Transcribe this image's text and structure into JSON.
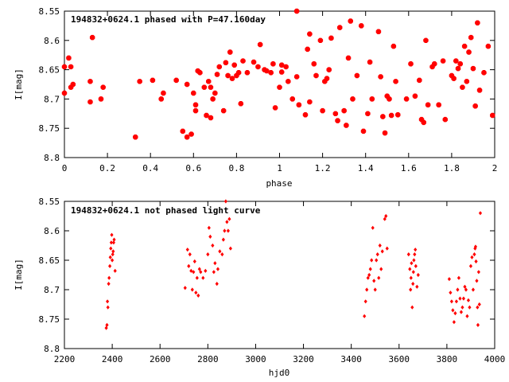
{
  "chart_data": [
    {
      "type": "scatter",
      "title": "194832+0624.1 phased with P=47.160day",
      "xlabel": "phase",
      "ylabel": "I[mag]",
      "xlim": [
        0,
        2
      ],
      "ylim": [
        8.8,
        8.55
      ],
      "y_inverted": true,
      "grid": false,
      "color": "#ff0000",
      "marker": "star",
      "xticks": [
        "0",
        "0.2",
        "0.4",
        "0.6",
        "0.8",
        "1",
        "1.2",
        "1.4",
        "1.6",
        "1.8",
        "2"
      ],
      "xtick_values": [
        0,
        0.2,
        0.4,
        0.6,
        0.8,
        1.0,
        1.2,
        1.4,
        1.6,
        1.8,
        2.0
      ],
      "yticks": [
        "8.55",
        "8.6",
        "8.65",
        "8.7",
        "8.75",
        "8.8"
      ],
      "ytick_values": [
        8.55,
        8.6,
        8.65,
        8.7,
        8.75,
        8.8
      ],
      "points": [
        [
          0.0,
          8.645
        ],
        [
          0.0,
          8.69
        ],
        [
          0.02,
          8.63
        ],
        [
          0.03,
          8.645
        ],
        [
          0.03,
          8.68
        ],
        [
          0.04,
          8.675
        ],
        [
          0.12,
          8.67
        ],
        [
          0.12,
          8.705
        ],
        [
          0.13,
          8.595
        ],
        [
          0.17,
          8.7
        ],
        [
          0.18,
          8.68
        ],
        [
          0.33,
          8.765
        ],
        [
          0.35,
          8.67
        ],
        [
          0.41,
          8.668
        ],
        [
          0.45,
          8.7
        ],
        [
          0.46,
          8.69
        ],
        [
          0.52,
          8.668
        ],
        [
          0.55,
          8.755
        ],
        [
          0.57,
          8.765
        ],
        [
          0.57,
          8.675
        ],
        [
          0.59,
          8.76
        ],
        [
          0.6,
          8.69
        ],
        [
          0.61,
          8.71
        ],
        [
          0.61,
          8.72
        ],
        [
          0.62,
          8.652
        ],
        [
          0.63,
          8.655
        ],
        [
          0.65,
          8.68
        ],
        [
          0.66,
          8.728
        ],
        [
          0.67,
          8.67
        ],
        [
          0.68,
          8.732
        ],
        [
          0.68,
          8.68
        ],
        [
          0.69,
          8.7
        ],
        [
          0.7,
          8.69
        ],
        [
          0.71,
          8.658
        ],
        [
          0.72,
          8.645
        ],
        [
          0.74,
          8.72
        ],
        [
          0.75,
          8.638
        ],
        [
          0.76,
          8.66
        ],
        [
          0.77,
          8.62
        ],
        [
          0.78,
          8.665
        ],
        [
          0.79,
          8.642
        ],
        [
          0.8,
          8.66
        ],
        [
          0.81,
          8.655
        ],
        [
          0.82,
          8.708
        ],
        [
          0.83,
          8.635
        ],
        [
          0.85,
          8.655
        ],
        [
          0.88,
          8.637
        ],
        [
          0.9,
          8.645
        ],
        [
          0.91,
          8.607
        ],
        [
          0.93,
          8.65
        ],
        [
          0.94,
          8.652
        ],
        [
          0.96,
          8.655
        ],
        [
          0.97,
          8.64
        ],
        [
          0.98,
          8.715
        ],
        [
          1.0,
          8.68
        ],
        [
          1.01,
          8.642
        ],
        [
          1.01,
          8.654
        ],
        [
          1.03,
          8.645
        ],
        [
          1.04,
          8.67
        ],
        [
          1.06,
          8.7
        ],
        [
          1.08,
          8.55
        ],
        [
          1.08,
          8.662
        ],
        [
          1.09,
          8.71
        ],
        [
          1.12,
          8.727
        ],
        [
          1.13,
          8.615
        ],
        [
          1.14,
          8.589
        ],
        [
          1.14,
          8.705
        ],
        [
          1.16,
          8.64
        ],
        [
          1.17,
          8.66
        ],
        [
          1.19,
          8.6
        ],
        [
          1.2,
          8.72
        ],
        [
          1.21,
          8.67
        ],
        [
          1.22,
          8.665
        ],
        [
          1.23,
          8.65
        ],
        [
          1.24,
          8.596
        ],
        [
          1.26,
          8.725
        ],
        [
          1.27,
          8.737
        ],
        [
          1.28,
          8.578
        ],
        [
          1.3,
          8.72
        ],
        [
          1.31,
          8.745
        ],
        [
          1.32,
          8.63
        ],
        [
          1.33,
          8.567
        ],
        [
          1.34,
          8.7
        ],
        [
          1.36,
          8.66
        ],
        [
          1.38,
          8.575
        ],
        [
          1.39,
          8.755
        ],
        [
          1.41,
          8.725
        ],
        [
          1.42,
          8.637
        ],
        [
          1.43,
          8.7
        ],
        [
          1.46,
          8.585
        ],
        [
          1.47,
          8.662
        ],
        [
          1.48,
          8.73
        ],
        [
          1.49,
          8.758
        ],
        [
          1.5,
          8.695
        ],
        [
          1.51,
          8.7
        ],
        [
          1.52,
          8.728
        ],
        [
          1.53,
          8.61
        ],
        [
          1.54,
          8.67
        ],
        [
          1.55,
          8.727
        ],
        [
          1.59,
          8.7
        ],
        [
          1.61,
          8.64
        ],
        [
          1.63,
          8.695
        ],
        [
          1.65,
          8.668
        ],
        [
          1.66,
          8.735
        ],
        [
          1.67,
          8.74
        ],
        [
          1.68,
          8.6
        ],
        [
          1.69,
          8.71
        ],
        [
          1.71,
          8.645
        ],
        [
          1.72,
          8.64
        ],
        [
          1.74,
          8.71
        ],
        [
          1.76,
          8.635
        ],
        [
          1.77,
          8.735
        ],
        [
          1.8,
          8.66
        ],
        [
          1.81,
          8.665
        ],
        [
          1.82,
          8.635
        ],
        [
          1.83,
          8.648
        ],
        [
          1.84,
          8.64
        ],
        [
          1.85,
          8.68
        ],
        [
          1.86,
          8.61
        ],
        [
          1.87,
          8.67
        ],
        [
          1.88,
          8.62
        ],
        [
          1.89,
          8.595
        ],
        [
          1.9,
          8.648
        ],
        [
          1.91,
          8.712
        ],
        [
          1.92,
          8.57
        ],
        [
          1.93,
          8.685
        ],
        [
          1.95,
          8.655
        ],
        [
          1.97,
          8.61
        ],
        [
          1.99,
          8.728
        ]
      ]
    },
    {
      "type": "scatter",
      "title": "194832+0624.1 not phased light curve",
      "xlabel": "hjd0",
      "ylabel": "I[mag]",
      "xlim": [
        2200,
        4000
      ],
      "ylim": [
        8.8,
        8.55
      ],
      "y_inverted": true,
      "grid": false,
      "color": "#ff0000",
      "marker": "diamond",
      "xticks": [
        "2200",
        "2400",
        "2600",
        "2800",
        "3000",
        "3200",
        "3400",
        "3600",
        "3800",
        "4000"
      ],
      "xtick_values": [
        2200,
        2400,
        2600,
        2800,
        3000,
        3200,
        3400,
        3600,
        3800,
        4000
      ],
      "yticks": [
        "8.55",
        "8.6",
        "8.65",
        "8.7",
        "8.75",
        "8.8"
      ],
      "ytick_values": [
        8.55,
        8.6,
        8.65,
        8.7,
        8.75,
        8.8
      ],
      "points": [
        [
          2375,
          8.765
        ],
        [
          2378,
          8.76
        ],
        [
          2380,
          8.72
        ],
        [
          2382,
          8.73
        ],
        [
          2385,
          8.69
        ],
        [
          2387,
          8.68
        ],
        [
          2390,
          8.66
        ],
        [
          2392,
          8.645
        ],
        [
          2394,
          8.63
        ],
        [
          2396,
          8.62
        ],
        [
          2398,
          8.607
        ],
        [
          2400,
          8.65
        ],
        [
          2402,
          8.64
        ],
        [
          2404,
          8.635
        ],
        [
          2406,
          8.62
        ],
        [
          2408,
          8.615
        ],
        [
          2412,
          8.668
        ],
        [
          2705,
          8.697
        ],
        [
          2715,
          8.632
        ],
        [
          2720,
          8.66
        ],
        [
          2725,
          8.64
        ],
        [
          2730,
          8.668
        ],
        [
          2735,
          8.7
        ],
        [
          2740,
          8.67
        ],
        [
          2745,
          8.652
        ],
        [
          2750,
          8.705
        ],
        [
          2755,
          8.68
        ],
        [
          2760,
          8.71
        ],
        [
          2765,
          8.665
        ],
        [
          2770,
          8.67
        ],
        [
          2780,
          8.68
        ],
        [
          2790,
          8.668
        ],
        [
          2800,
          8.64
        ],
        [
          2805,
          8.595
        ],
        [
          2810,
          8.61
        ],
        [
          2820,
          8.625
        ],
        [
          2825,
          8.67
        ],
        [
          2830,
          8.655
        ],
        [
          2838,
          8.69
        ],
        [
          2842,
          8.665
        ],
        [
          2850,
          8.635
        ],
        [
          2860,
          8.64
        ],
        [
          2865,
          8.615
        ],
        [
          2870,
          8.6
        ],
        [
          2875,
          8.55
        ],
        [
          2880,
          8.585
        ],
        [
          2885,
          8.6
        ],
        [
          2890,
          8.58
        ],
        [
          2895,
          8.63
        ],
        [
          3455,
          8.745
        ],
        [
          3460,
          8.72
        ],
        [
          3465,
          8.7
        ],
        [
          3470,
          8.68
        ],
        [
          3475,
          8.675
        ],
        [
          3480,
          8.665
        ],
        [
          3485,
          8.65
        ],
        [
          3490,
          8.595
        ],
        [
          3495,
          8.685
        ],
        [
          3500,
          8.7
        ],
        [
          3505,
          8.65
        ],
        [
          3510,
          8.64
        ],
        [
          3515,
          8.68
        ],
        [
          3520,
          8.625
        ],
        [
          3525,
          8.665
        ],
        [
          3530,
          8.635
        ],
        [
          3540,
          8.58
        ],
        [
          3545,
          8.575
        ],
        [
          3550,
          8.63
        ],
        [
          3640,
          8.64
        ],
        [
          3645,
          8.665
        ],
        [
          3648,
          8.7
        ],
        [
          3650,
          8.68
        ],
        [
          3652,
          8.655
        ],
        [
          3655,
          8.73
        ],
        [
          3658,
          8.69
        ],
        [
          3660,
          8.67
        ],
        [
          3662,
          8.65
        ],
        [
          3665,
          8.64
        ],
        [
          3668,
          8.632
        ],
        [
          3670,
          8.66
        ],
        [
          3675,
          8.695
        ],
        [
          3680,
          8.675
        ],
        [
          3810,
          8.682
        ],
        [
          3815,
          8.705
        ],
        [
          3820,
          8.72
        ],
        [
          3825,
          8.735
        ],
        [
          3830,
          8.755
        ],
        [
          3835,
          8.74
        ],
        [
          3840,
          8.72
        ],
        [
          3845,
          8.7
        ],
        [
          3850,
          8.68
        ],
        [
          3855,
          8.715
        ],
        [
          3860,
          8.738
        ],
        [
          3865,
          8.73
        ],
        [
          3870,
          8.715
        ],
        [
          3875,
          8.695
        ],
        [
          3880,
          8.7
        ],
        [
          3885,
          8.745
        ],
        [
          3890,
          8.718
        ],
        [
          3895,
          8.73
        ],
        [
          3900,
          8.66
        ],
        [
          3905,
          8.645
        ],
        [
          3910,
          8.7
        ],
        [
          3915,
          8.64
        ],
        [
          3918,
          8.63
        ],
        [
          3920,
          8.627
        ],
        [
          3922,
          8.652
        ],
        [
          3925,
          8.685
        ],
        [
          3928,
          8.73
        ],
        [
          3930,
          8.76
        ],
        [
          3933,
          8.67
        ],
        [
          3936,
          8.725
        ],
        [
          3940,
          8.57
        ]
      ]
    }
  ]
}
